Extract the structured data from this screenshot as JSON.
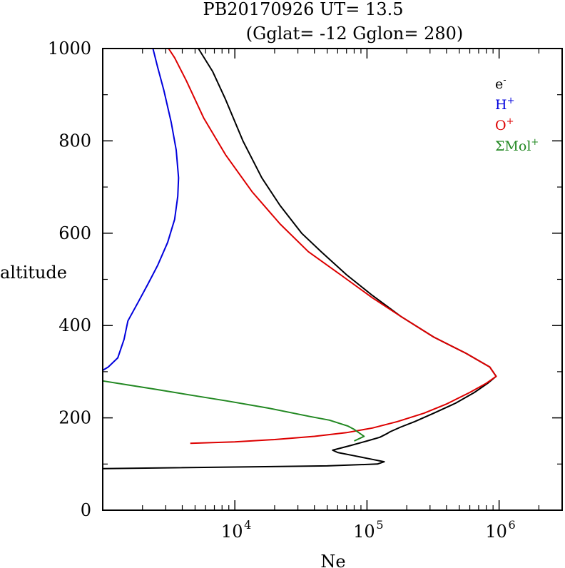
{
  "chart_data": {
    "type": "line",
    "title": "PB20170926   UT=  13.5",
    "subtitle": "(Gglat= -12   Gglon=  280)",
    "xlabel": "Ne",
    "ylabel": "altitude",
    "xscale": "log",
    "xlim": [
      1000,
      3000000
    ],
    "ylim": [
      0,
      1000
    ],
    "yticks": [
      0,
      200,
      400,
      600,
      800,
      1000
    ],
    "xticks": [
      {
        "value": 10000,
        "label": "10",
        "exp": "4"
      },
      {
        "value": 100000,
        "label": "10",
        "exp": "5"
      },
      {
        "value": 1000000,
        "label": "10",
        "exp": "6"
      }
    ],
    "legend_position": "top-right",
    "series": [
      {
        "name": "e",
        "sup": "-",
        "color": "#000000",
        "points": [
          [
            1000,
            90
          ],
          [
            50000,
            96
          ],
          [
            120000,
            100
          ],
          [
            135000,
            105
          ],
          [
            110000,
            110
          ],
          [
            80000,
            118
          ],
          [
            60000,
            125
          ],
          [
            55000,
            130
          ],
          [
            75000,
            140
          ],
          [
            100000,
            150
          ],
          [
            125000,
            158
          ],
          [
            140000,
            165
          ],
          [
            150000,
            170
          ],
          [
            180000,
            180
          ],
          [
            230000,
            192
          ],
          [
            320000,
            210
          ],
          [
            470000,
            232
          ],
          [
            650000,
            255
          ],
          [
            820000,
            275
          ],
          [
            950000,
            290
          ],
          [
            850000,
            310
          ],
          [
            560000,
            340
          ],
          [
            320000,
            375
          ],
          [
            180000,
            420
          ],
          [
            110000,
            465
          ],
          [
            70000,
            510
          ],
          [
            45000,
            560
          ],
          [
            32000,
            600
          ],
          [
            22000,
            660
          ],
          [
            16000,
            720
          ],
          [
            11500,
            800
          ],
          [
            8500,
            890
          ],
          [
            6800,
            950
          ],
          [
            5300,
            1000
          ]
        ]
      },
      {
        "name": "H",
        "sup": "+",
        "color": "#0000dd",
        "points": [
          [
            1000,
            303
          ],
          [
            1100,
            310
          ],
          [
            1300,
            330
          ],
          [
            1450,
            370
          ],
          [
            1550,
            410
          ],
          [
            1850,
            450
          ],
          [
            2200,
            490
          ],
          [
            2600,
            530
          ],
          [
            3100,
            580
          ],
          [
            3500,
            630
          ],
          [
            3700,
            680
          ],
          [
            3750,
            720
          ],
          [
            3600,
            780
          ],
          [
            3300,
            840
          ],
          [
            2900,
            910
          ],
          [
            2600,
            960
          ],
          [
            2400,
            1000
          ]
        ]
      },
      {
        "name": "O",
        "sup": "+",
        "color": "#dd0000",
        "points": [
          [
            4600,
            145
          ],
          [
            10000,
            148
          ],
          [
            20000,
            153
          ],
          [
            40000,
            160
          ],
          [
            70000,
            168
          ],
          [
            110000,
            178
          ],
          [
            170000,
            192
          ],
          [
            270000,
            210
          ],
          [
            400000,
            230
          ],
          [
            600000,
            255
          ],
          [
            800000,
            275
          ],
          [
            950000,
            290
          ],
          [
            850000,
            310
          ],
          [
            560000,
            340
          ],
          [
            320000,
            375
          ],
          [
            180000,
            420
          ],
          [
            110000,
            460
          ],
          [
            63000,
            510
          ],
          [
            36000,
            560
          ],
          [
            22000,
            620
          ],
          [
            13500,
            690
          ],
          [
            8500,
            770
          ],
          [
            5800,
            850
          ],
          [
            4300,
            930
          ],
          [
            3500,
            980
          ],
          [
            3150,
            1000
          ]
        ]
      },
      {
        "name": "ΣMol",
        "sup": "+",
        "color": "#228822",
        "points": [
          [
            1000,
            280
          ],
          [
            1500,
            272
          ],
          [
            2500,
            262
          ],
          [
            4500,
            250
          ],
          [
            9000,
            236
          ],
          [
            18000,
            221
          ],
          [
            37000,
            203
          ],
          [
            52000,
            195
          ],
          [
            72000,
            182
          ],
          [
            80000,
            175
          ],
          [
            95000,
            160
          ],
          [
            80000,
            150
          ]
        ]
      }
    ]
  }
}
